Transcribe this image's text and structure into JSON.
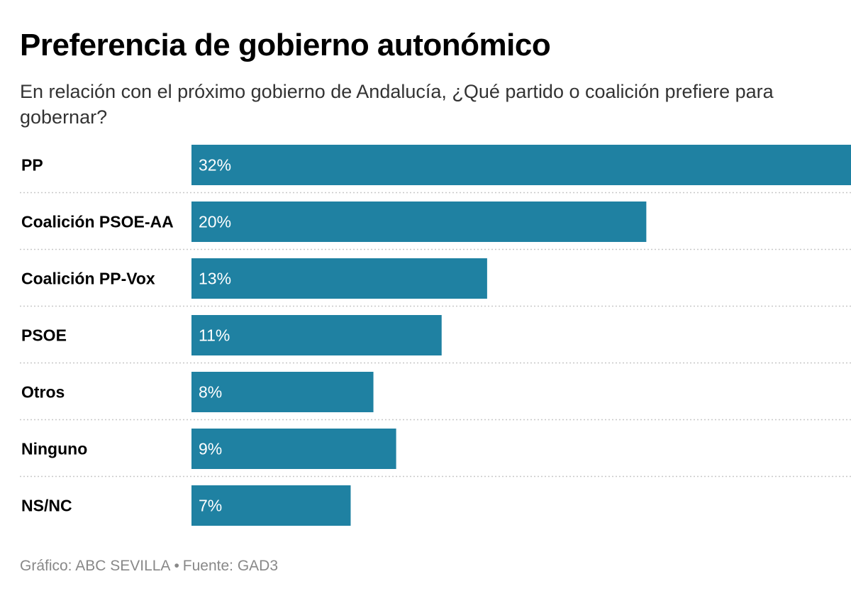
{
  "title": "Preferencia de gobierno autonómico",
  "subtitle": "En relación con el próximo gobierno de Andalucía, ¿Qué partido o coalición prefiere para gobernar?",
  "footer": {
    "graphic": "Gráfico: ABC SEVILLA",
    "separator": "•",
    "source": "Fuente: GAD3"
  },
  "colors": {
    "bar": "#1f81a2",
    "label_text": "#ffffff",
    "grid": "#c8c8c8"
  },
  "chart_data": {
    "type": "bar",
    "orientation": "horizontal",
    "categories": [
      "PP",
      "Coalición PSOE-AA",
      "Coalición PP-Vox",
      "PSOE",
      "Otros",
      "Ninguno",
      "NS/NC"
    ],
    "values": [
      32,
      20,
      13,
      11,
      8,
      9,
      7
    ],
    "value_labels": [
      "32%",
      "20%",
      "13%",
      "11%",
      "8%",
      "9%",
      "7%"
    ],
    "xlim": [
      0,
      29
    ],
    "grid": "dotted separators between rows"
  }
}
